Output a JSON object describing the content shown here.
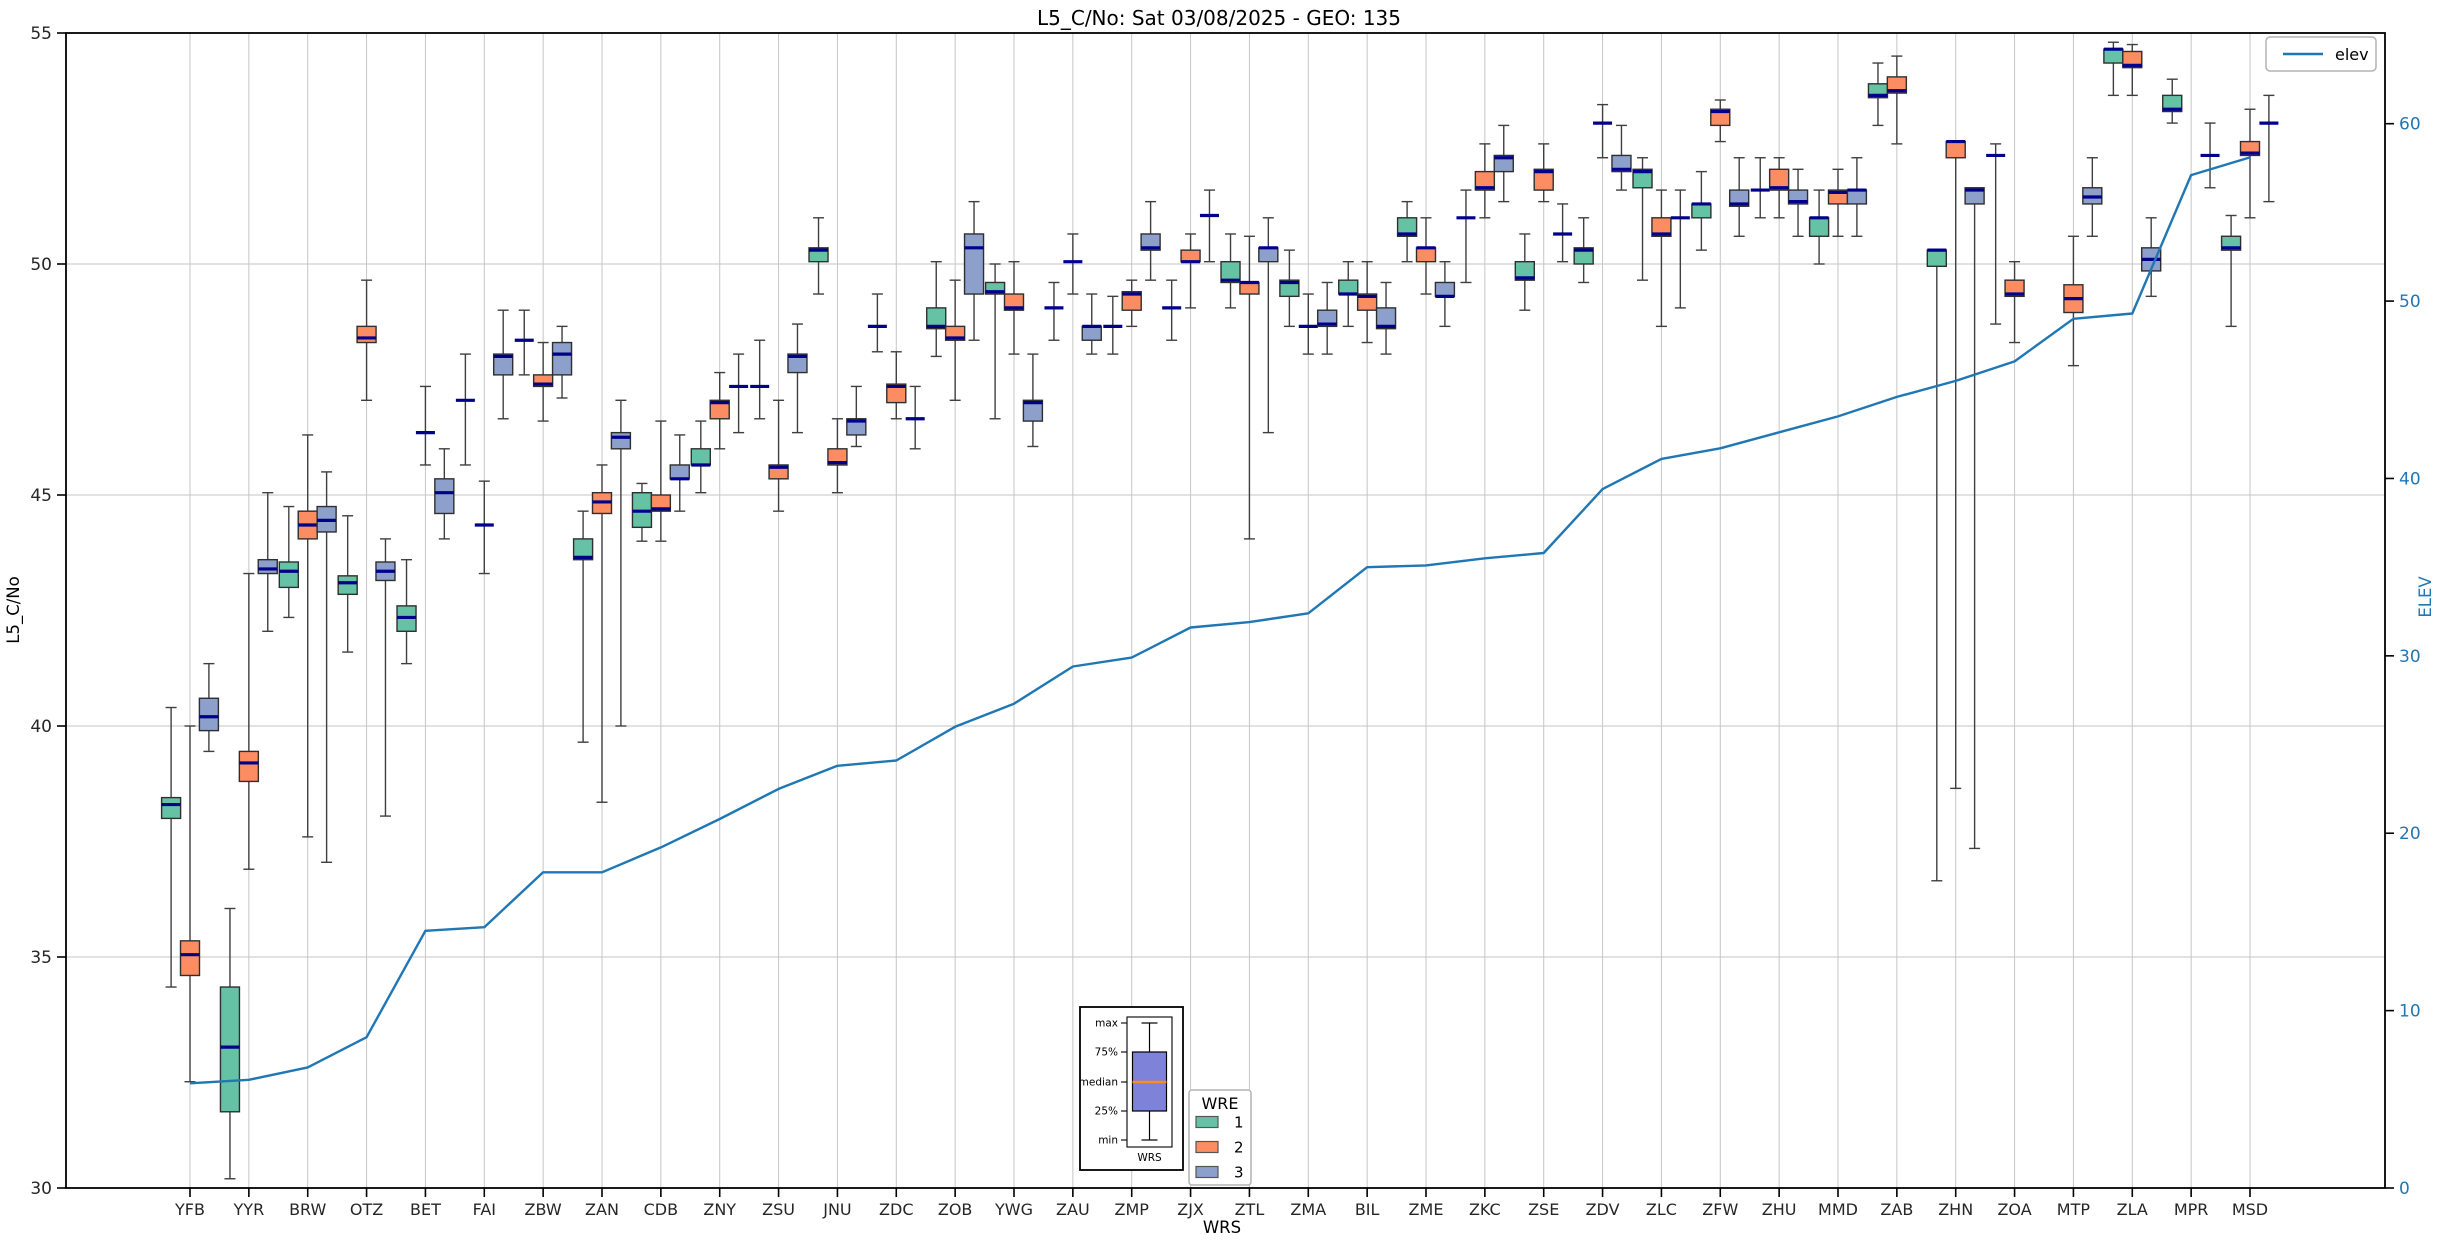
{
  "chart_data": {
    "type": "boxplot+line",
    "title": "L5_C/No: Sat 03/08/2025 - GEO: 135",
    "xlabel": "WRS",
    "ylabel_left": "L5_C/No",
    "ylabel_right": "ELEV",
    "ylim_left": [
      30,
      55
    ],
    "yticks_left": [
      30,
      35,
      40,
      45,
      50,
      55
    ],
    "ylim_right": [
      0,
      65.1
    ],
    "yticks_right": [
      0,
      10,
      20,
      30,
      40,
      50,
      60
    ],
    "grid": true,
    "legend_position": "bottom-center-inset",
    "categories": [
      "YFB",
      "YYR",
      "BRW",
      "OTZ",
      "BET",
      "FAI",
      "ZBW",
      "ZAN",
      "CDB",
      "ZNY",
      "ZSU",
      "JNU",
      "ZDC",
      "ZOB",
      "YWG",
      "ZAU",
      "ZMP",
      "ZJX",
      "ZTL",
      "ZMA",
      "BIL",
      "ZME",
      "ZKC",
      "ZSE",
      "ZDV",
      "ZLC",
      "ZFW",
      "ZHU",
      "MMD",
      "ZAB",
      "ZHN",
      "ZOA",
      "MTP",
      "ZLA",
      "MPR",
      "MSD"
    ],
    "wre_legend": {
      "title": "WRE",
      "entries": [
        {
          "label": "1",
          "color": "#66c2a5"
        },
        {
          "label": "2",
          "color": "#fc8d62"
        },
        {
          "label": "3",
          "color": "#8da0cb"
        }
      ]
    },
    "elev_legend_label": "elev",
    "elev_color": "#1f77b4",
    "median_color": "#00008b",
    "box_edge_color": "#2f2f2f",
    "whisker_color": "#3f3f3f",
    "grid_color": "#c6c6c6",
    "inset_legend": {
      "tick_labels": [
        "max",
        "75%",
        "median",
        "25%",
        "min"
      ],
      "xlabel": "WRS",
      "box_color": "#7e82d8",
      "median_color": "#ff8c1a"
    },
    "boxes_format": [
      "station",
      "wre",
      "min",
      "q1",
      "median",
      "q3",
      "max"
    ],
    "boxes": [
      [
        "YFB",
        1,
        34.35,
        38.0,
        38.3,
        38.45,
        40.4
      ],
      [
        "YFB",
        2,
        32.3,
        34.6,
        35.05,
        35.35,
        40.0
      ],
      [
        "YFB",
        3,
        39.45,
        39.9,
        40.2,
        40.6,
        41.35
      ],
      [
        "YYR",
        1,
        30.2,
        31.65,
        33.05,
        34.35,
        36.05
      ],
      [
        "YYR",
        2,
        36.9,
        38.8,
        39.2,
        39.45,
        43.3
      ],
      [
        "YYR",
        3,
        42.05,
        43.3,
        43.4,
        43.6,
        45.05
      ],
      [
        "BRW",
        1,
        42.35,
        43.0,
        43.35,
        43.55,
        44.75
      ],
      [
        "BRW",
        2,
        37.6,
        44.05,
        44.35,
        44.65,
        46.3
      ],
      [
        "BRW",
        3,
        37.05,
        44.2,
        44.45,
        44.75,
        45.5
      ],
      [
        "OTZ",
        1,
        41.6,
        42.85,
        43.1,
        43.25,
        44.55
      ],
      [
        "OTZ",
        2,
        47.05,
        48.3,
        48.4,
        48.65,
        49.65
      ],
      [
        "OTZ",
        3,
        38.05,
        43.15,
        43.35,
        43.55,
        44.05
      ],
      [
        "BET",
        1,
        41.35,
        42.05,
        42.35,
        42.6,
        43.6
      ],
      [
        "BET",
        2,
        45.65,
        46.35,
        46.35,
        46.35,
        47.35
      ],
      [
        "BET",
        3,
        44.05,
        44.6,
        45.05,
        45.35,
        46.0
      ],
      [
        "FAI",
        1,
        45.65,
        47.05,
        47.05,
        47.05,
        48.05
      ],
      [
        "FAI",
        2,
        43.3,
        44.35,
        44.35,
        44.35,
        45.3
      ],
      [
        "FAI",
        3,
        46.65,
        47.6,
        48.0,
        48.05,
        49.0
      ],
      [
        "ZBW",
        1,
        47.6,
        48.35,
        48.35,
        48.35,
        49.0
      ],
      [
        "ZBW",
        2,
        46.6,
        47.35,
        47.4,
        47.6,
        48.3
      ],
      [
        "ZBW",
        3,
        47.1,
        47.6,
        48.05,
        48.3,
        48.65
      ],
      [
        "ZAN",
        1,
        39.65,
        43.6,
        43.65,
        44.05,
        44.65
      ],
      [
        "ZAN",
        2,
        38.35,
        44.6,
        44.85,
        45.05,
        45.65
      ],
      [
        "ZAN",
        3,
        40.0,
        46.0,
        46.25,
        46.35,
        47.05
      ],
      [
        "CDB",
        1,
        44.0,
        44.3,
        44.65,
        45.05,
        45.25
      ],
      [
        "CDB",
        2,
        44.0,
        44.65,
        44.7,
        45.0,
        46.6
      ],
      [
        "CDB",
        3,
        44.65,
        45.35,
        45.35,
        45.65,
        46.3
      ],
      [
        "ZNY",
        1,
        45.05,
        45.65,
        45.65,
        46.0,
        46.6
      ],
      [
        "ZNY",
        2,
        46.0,
        46.65,
        47.0,
        47.05,
        47.65
      ],
      [
        "ZNY",
        3,
        46.35,
        47.35,
        47.35,
        47.35,
        48.05
      ],
      [
        "ZSU",
        1,
        46.65,
        47.35,
        47.35,
        47.35,
        48.35
      ],
      [
        "ZSU",
        2,
        44.65,
        45.35,
        45.6,
        45.65,
        47.05
      ],
      [
        "ZSU",
        3,
        46.35,
        47.65,
        48.0,
        48.05,
        48.7
      ],
      [
        "JNU",
        1,
        49.35,
        50.05,
        50.3,
        50.35,
        51.0
      ],
      [
        "JNU",
        2,
        45.05,
        45.65,
        45.7,
        46.0,
        46.65
      ],
      [
        "JNU",
        3,
        46.05,
        46.3,
        46.6,
        46.65,
        47.35
      ],
      [
        "ZDC",
        1,
        48.1,
        48.65,
        48.65,
        48.65,
        49.35
      ],
      [
        "ZDC",
        2,
        46.65,
        47.0,
        47.35,
        47.4,
        48.1
      ],
      [
        "ZDC",
        3,
        46.0,
        46.65,
        46.65,
        46.65,
        47.35
      ],
      [
        "ZOB",
        1,
        48.0,
        48.6,
        48.65,
        49.05,
        50.05
      ],
      [
        "ZOB",
        2,
        47.05,
        48.35,
        48.4,
        48.65,
        49.65
      ],
      [
        "ZOB",
        3,
        48.35,
        49.35,
        50.35,
        50.65,
        51.35
      ],
      [
        "YWG",
        1,
        46.65,
        49.35,
        49.4,
        49.6,
        50.0
      ],
      [
        "YWG",
        2,
        48.05,
        49.0,
        49.05,
        49.35,
        50.05
      ],
      [
        "YWG",
        3,
        46.05,
        46.6,
        47.0,
        47.05,
        48.05
      ],
      [
        "ZAU",
        1,
        48.35,
        49.05,
        49.05,
        49.05,
        49.6
      ],
      [
        "ZAU",
        2,
        49.35,
        50.05,
        50.05,
        50.05,
        50.65
      ],
      [
        "ZAU",
        3,
        48.05,
        48.35,
        48.65,
        48.65,
        49.35
      ],
      [
        "ZMP",
        1,
        48.05,
        48.65,
        48.65,
        48.65,
        49.3
      ],
      [
        "ZMP",
        2,
        48.65,
        49.0,
        49.35,
        49.4,
        49.65
      ],
      [
        "ZMP",
        3,
        49.65,
        50.3,
        50.35,
        50.65,
        51.35
      ],
      [
        "ZJX",
        1,
        48.35,
        49.05,
        49.05,
        49.05,
        49.65
      ],
      [
        "ZJX",
        2,
        49.05,
        50.05,
        50.05,
        50.3,
        50.65
      ],
      [
        "ZJX",
        3,
        50.05,
        51.05,
        51.05,
        51.05,
        51.6
      ],
      [
        "ZTL",
        1,
        49.05,
        49.6,
        49.65,
        50.05,
        50.65
      ],
      [
        "ZTL",
        2,
        44.05,
        49.35,
        49.6,
        49.6,
        50.6
      ],
      [
        "ZTL",
        3,
        46.35,
        50.05,
        50.35,
        50.35,
        51.0
      ],
      [
        "ZMA",
        1,
        48.65,
        49.3,
        49.6,
        49.65,
        50.3
      ],
      [
        "ZMA",
        2,
        48.05,
        48.65,
        48.65,
        48.65,
        49.35
      ],
      [
        "ZMA",
        3,
        48.05,
        48.65,
        48.7,
        49.0,
        49.6
      ],
      [
        "BIL",
        1,
        48.65,
        49.35,
        49.35,
        49.65,
        50.05
      ],
      [
        "BIL",
        2,
        48.3,
        49.0,
        49.3,
        49.35,
        50.05
      ],
      [
        "BIL",
        3,
        48.05,
        48.6,
        48.65,
        49.05,
        49.6
      ],
      [
        "ZME",
        1,
        50.05,
        50.6,
        50.65,
        51.0,
        51.35
      ],
      [
        "ZME",
        2,
        49.35,
        50.05,
        50.35,
        50.35,
        51.0
      ],
      [
        "ZME",
        3,
        48.65,
        49.3,
        49.3,
        49.6,
        50.05
      ],
      [
        "ZKC",
        1,
        49.6,
        51.0,
        51.0,
        51.0,
        51.6
      ],
      [
        "ZKC",
        2,
        51.0,
        51.6,
        51.65,
        52.0,
        52.6
      ],
      [
        "ZKC",
        3,
        51.35,
        52.0,
        52.3,
        52.35,
        53.0
      ],
      [
        "ZSE",
        1,
        49.0,
        49.65,
        49.7,
        50.05,
        50.65
      ],
      [
        "ZSE",
        2,
        51.35,
        51.6,
        52.0,
        52.05,
        52.6
      ],
      [
        "ZSE",
        3,
        50.05,
        50.65,
        50.65,
        50.65,
        51.3
      ],
      [
        "ZDV",
        1,
        49.6,
        50.0,
        50.3,
        50.35,
        51.0
      ],
      [
        "ZDV",
        2,
        52.3,
        53.05,
        53.05,
        53.05,
        53.45
      ],
      [
        "ZDV",
        3,
        51.6,
        52.0,
        52.05,
        52.35,
        53.0
      ],
      [
        "ZLC",
        1,
        49.65,
        51.65,
        52.0,
        52.05,
        52.3
      ],
      [
        "ZLC",
        2,
        48.65,
        50.6,
        50.65,
        51.0,
        51.6
      ],
      [
        "ZLC",
        3,
        49.05,
        51.0,
        51.0,
        51.0,
        51.6
      ],
      [
        "ZFW",
        1,
        50.3,
        51.0,
        51.3,
        51.3,
        52.0
      ],
      [
        "ZFW",
        2,
        52.65,
        53.0,
        53.3,
        53.35,
        53.55
      ],
      [
        "ZFW",
        3,
        50.6,
        51.25,
        51.3,
        51.6,
        52.3
      ],
      [
        "ZHU",
        1,
        51.0,
        51.6,
        51.6,
        51.6,
        52.3
      ],
      [
        "ZHU",
        2,
        51.0,
        51.6,
        51.65,
        52.05,
        52.3
      ],
      [
        "ZHU",
        3,
        50.6,
        51.3,
        51.35,
        51.6,
        52.05
      ],
      [
        "MMD",
        1,
        50.0,
        50.6,
        51.0,
        51.0,
        51.6
      ],
      [
        "MMD",
        2,
        50.6,
        51.3,
        51.55,
        51.6,
        52.05
      ],
      [
        "MMD",
        3,
        50.6,
        51.3,
        51.6,
        51.6,
        52.3
      ],
      [
        "ZAB",
        1,
        53.0,
        53.6,
        53.65,
        53.9,
        54.35
      ],
      [
        "ZAB",
        2,
        52.6,
        53.7,
        53.75,
        54.05,
        54.5
      ],
      [
        "ZHN",
        1,
        36.65,
        49.95,
        50.3,
        50.3,
        50.3
      ],
      [
        "ZHN",
        2,
        38.65,
        52.3,
        52.65,
        52.65,
        52.65
      ],
      [
        "ZHN",
        3,
        37.35,
        51.3,
        51.6,
        51.65,
        51.65
      ],
      [
        "ZOA",
        1,
        48.7,
        52.35,
        52.35,
        52.35,
        52.6
      ],
      [
        "ZOA",
        2,
        48.3,
        49.3,
        49.35,
        49.65,
        50.05
      ],
      [
        "MTP",
        2,
        47.8,
        48.95,
        49.25,
        49.55,
        50.6
      ],
      [
        "MTP",
        3,
        50.6,
        51.3,
        51.45,
        51.65,
        52.3
      ],
      [
        "ZLA",
        1,
        53.65,
        54.35,
        54.65,
        54.65,
        54.8
      ],
      [
        "ZLA",
        2,
        53.65,
        54.25,
        54.3,
        54.6,
        54.75
      ],
      [
        "ZLA",
        3,
        49.3,
        49.85,
        50.1,
        50.35,
        51.0
      ],
      [
        "MPR",
        1,
        53.05,
        53.3,
        53.35,
        53.65,
        54.0
      ],
      [
        "MPR",
        3,
        51.65,
        52.35,
        52.35,
        52.35,
        53.05
      ],
      [
        "MSD",
        1,
        48.65,
        50.3,
        50.35,
        50.6,
        51.05
      ],
      [
        "MSD",
        2,
        51.0,
        52.35,
        52.4,
        52.65,
        53.35
      ],
      [
        "MSD",
        3,
        51.35,
        53.05,
        53.05,
        53.05,
        53.65
      ]
    ],
    "elev_series_name": "elev",
    "elev": [
      5.9,
      6.1,
      6.8,
      8.5,
      14.5,
      14.7,
      17.8,
      17.8,
      19.2,
      20.8,
      22.5,
      23.8,
      24.1,
      26.0,
      27.3,
      29.4,
      29.9,
      31.6,
      31.9,
      32.4,
      35.0,
      35.1,
      35.5,
      35.8,
      39.4,
      41.1,
      41.7,
      42.6,
      43.5,
      44.6,
      45.5,
      46.6,
      49.0,
      49.3,
      57.1,
      58.1
    ]
  }
}
